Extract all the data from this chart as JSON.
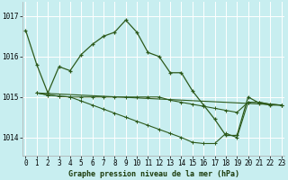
{
  "title": "Graphe pression niveau de la mer (hPa)",
  "bg_color": "#c8eef0",
  "grid_color": "#ffffff",
  "line_color": "#2d5a1b",
  "xlim": [
    -0.3,
    23.3
  ],
  "ylim": [
    1013.55,
    1017.35
  ],
  "yticks": [
    1014,
    1015,
    1016,
    1017
  ],
  "xticks": [
    0,
    1,
    2,
    3,
    4,
    5,
    6,
    7,
    8,
    9,
    10,
    11,
    12,
    13,
    14,
    15,
    16,
    17,
    18,
    19,
    20,
    21,
    22,
    23
  ],
  "series1_x": [
    0,
    1,
    2,
    3,
    4,
    5,
    6,
    7,
    8,
    9,
    10,
    11,
    12,
    13,
    14,
    15,
    16,
    17,
    18,
    19,
    20,
    21,
    22,
    23
  ],
  "series1_y": [
    1016.65,
    1015.8,
    1015.1,
    1015.75,
    1015.65,
    1016.05,
    1016.3,
    1016.5,
    1016.6,
    1016.9,
    1016.6,
    1016.1,
    1016.0,
    1015.6,
    1015.6,
    1015.15,
    1014.8,
    1014.45,
    1014.05,
    1014.05,
    1015.0,
    1014.85,
    1014.8,
    1014.8
  ],
  "series2_x": [
    1,
    2,
    3,
    4,
    5,
    6,
    7,
    8,
    9,
    10,
    11,
    12,
    13,
    14,
    15,
    16,
    17,
    18,
    19,
    20,
    21,
    22,
    23
  ],
  "series2_y": [
    1015.1,
    1015.05,
    1015.02,
    1015.0,
    1015.0,
    1015.0,
    1015.0,
    1015.0,
    1015.0,
    1015.0,
    1015.0,
    1015.0,
    1014.92,
    1014.87,
    1014.82,
    1014.77,
    1014.72,
    1014.67,
    1014.62,
    1014.87,
    1014.87,
    1014.82,
    1014.8
  ],
  "series3_x": [
    1,
    2,
    3,
    4,
    5,
    6,
    7,
    8,
    9,
    10,
    11,
    12,
    13,
    14,
    15,
    16,
    17,
    18,
    19,
    20,
    21,
    22,
    23
  ],
  "series3_y": [
    1015.1,
    1015.05,
    1015.02,
    1015.0,
    1014.9,
    1014.8,
    1014.7,
    1014.6,
    1014.5,
    1014.4,
    1014.3,
    1014.2,
    1014.1,
    1014.0,
    1013.88,
    1013.85,
    1013.85,
    1014.1,
    1014.0,
    1014.87,
    1014.87,
    1014.82,
    1014.8
  ],
  "series4_x": [
    1,
    23
  ],
  "series4_y": [
    1015.1,
    1014.8
  ],
  "xlabel_fontsize": 6.0,
  "tick_fontsize": 5.5,
  "label_color": "#1a3a0a"
}
